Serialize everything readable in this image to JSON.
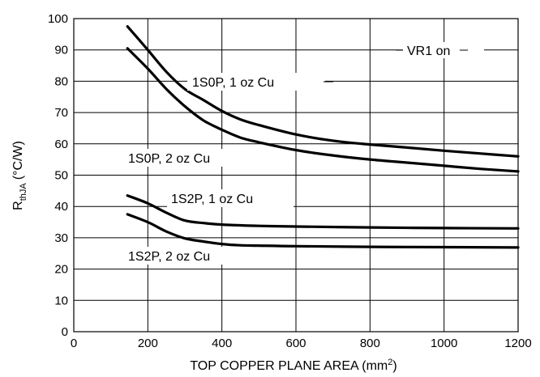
{
  "chart_data": {
    "type": "line",
    "title": "",
    "xlabel": "TOP COPPER PLANE AREA (mm",
    "xlabel_sup": "2",
    "xlabel_end": ")",
    "ylabel_main": "R",
    "ylabel_sub": "thJA",
    "ylabel_unit": "(°C/W)",
    "xlim": [
      0,
      1200
    ],
    "ylim": [
      0,
      100
    ],
    "x_ticks": [
      0,
      200,
      400,
      600,
      800,
      1000,
      1200
    ],
    "y_ticks": [
      0,
      10,
      20,
      30,
      40,
      50,
      60,
      70,
      80,
      90,
      100
    ],
    "grid": true,
    "annotations": {
      "vr1": "VR1 on",
      "s1s0p_1oz": "1S0P, 1 oz Cu",
      "s1s0p_2oz": "1S0P, 2 oz Cu",
      "s1s2p_1oz": "1S2P, 1 oz Cu",
      "s1s2p_2oz": "1S2P, 2 oz Cu"
    },
    "series": [
      {
        "x": [
          145,
          200,
          250,
          300,
          350,
          400,
          450,
          500,
          600,
          700,
          800,
          900,
          1000,
          1100,
          1200
        ],
        "y": [
          97.5,
          90,
          83,
          77.5,
          74,
          70.5,
          67.8,
          66,
          63,
          61,
          59.8,
          58.8,
          57.8,
          56.9,
          56
        ]
      },
      {
        "x": [
          145,
          200,
          250,
          300,
          350,
          400,
          450,
          500,
          600,
          700,
          800,
          900,
          1000,
          1100,
          1200
        ],
        "y": [
          90.5,
          84,
          77.5,
          72,
          67.5,
          64.5,
          62,
          60.5,
          58,
          56.3,
          55,
          54,
          53,
          52,
          51.2
        ]
      },
      {
        "x": [
          145,
          200,
          250,
          300,
          350,
          400,
          500,
          600,
          800,
          1000,
          1200
        ],
        "y": [
          43.5,
          41,
          38,
          35.5,
          34.7,
          34.2,
          33.8,
          33.6,
          33.3,
          33.1,
          33
        ]
      },
      {
        "x": [
          145,
          200,
          250,
          300,
          350,
          400,
          450,
          500,
          600,
          800,
          1000,
          1200
        ],
        "y": [
          37.5,
          35,
          32,
          29.8,
          28.8,
          28,
          27.6,
          27.5,
          27.3,
          27.1,
          27,
          26.9
        ]
      }
    ]
  }
}
